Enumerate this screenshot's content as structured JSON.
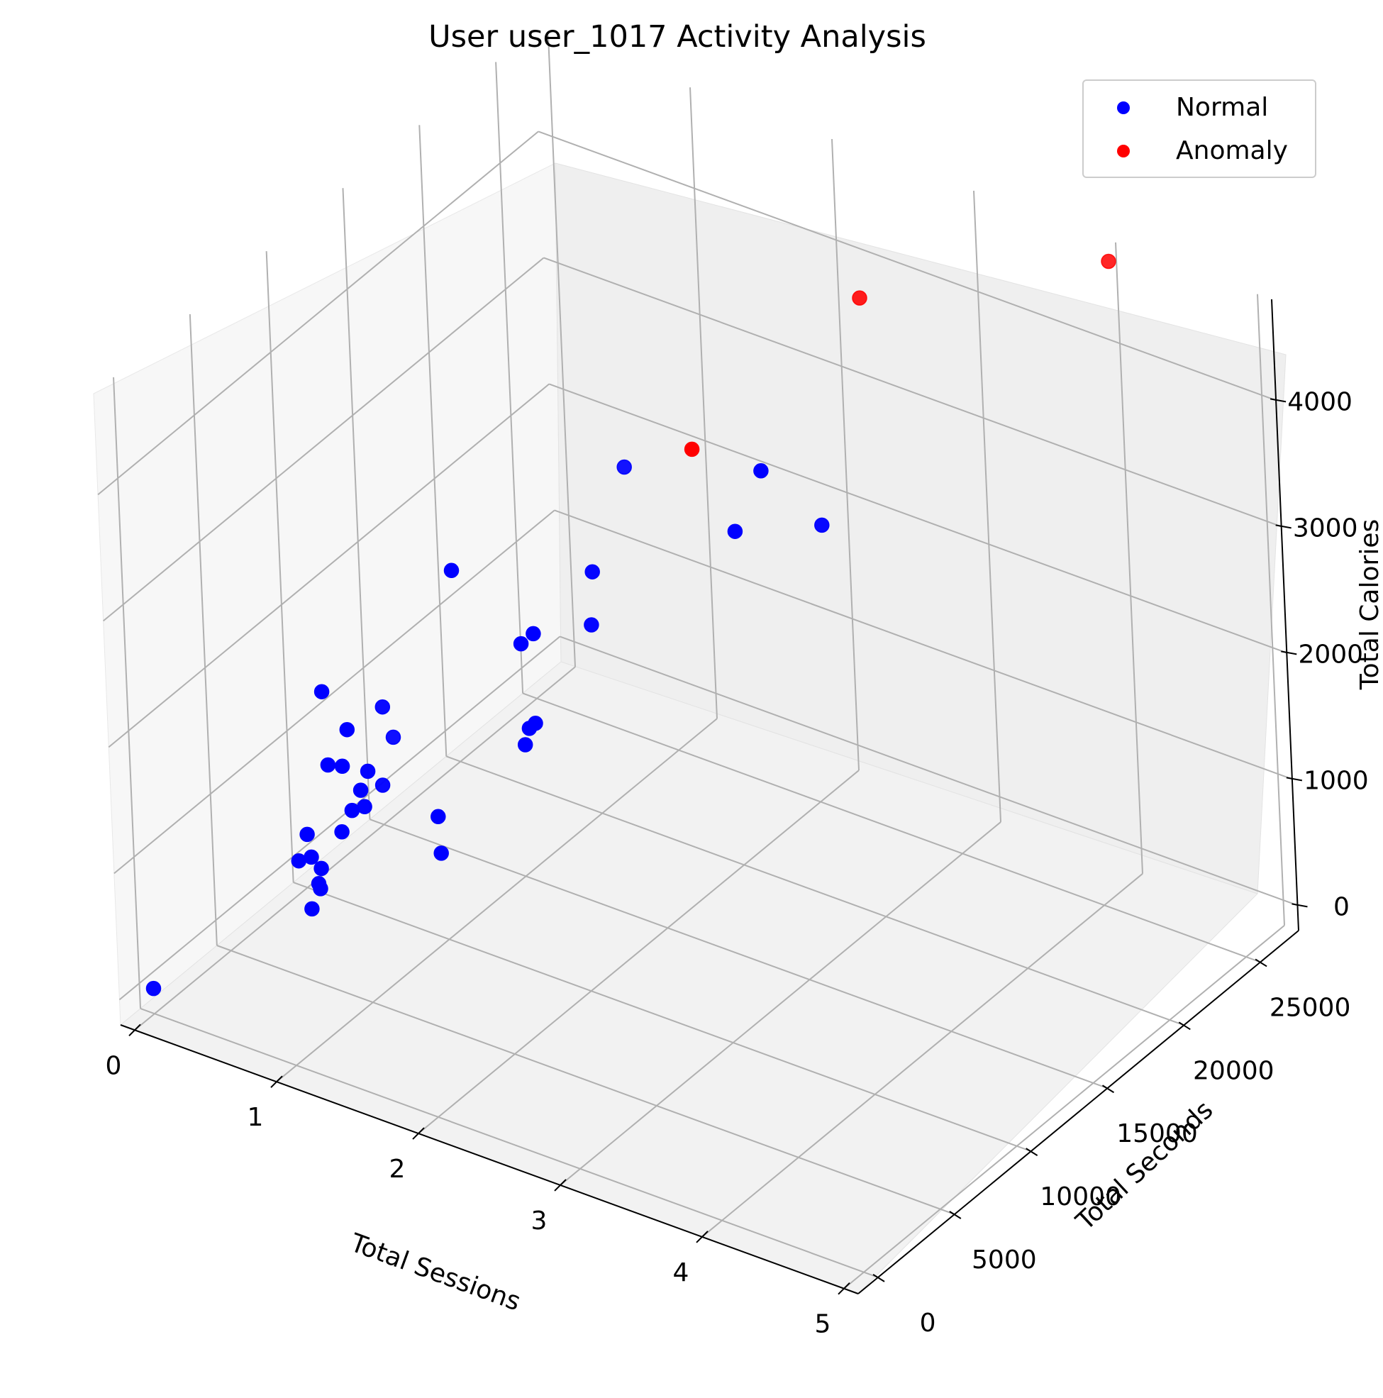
{
  "chart_data": {
    "type": "scatter",
    "projection": "3d",
    "title": "User user_1017 Activity Analysis",
    "xlabel": "Total Sessions",
    "ylabel": "Total Seconds",
    "zlabel": "Total Calories",
    "xticks": [
      "0",
      "1",
      "2",
      "3",
      "4",
      "5"
    ],
    "yticks": [
      "0",
      "5000",
      "10000",
      "15000",
      "20000",
      "25000"
    ],
    "zticks": [
      "0",
      "1000",
      "2000",
      "3000",
      "4000"
    ],
    "xlim": [
      -0.1,
      5.1
    ],
    "ylim": [
      -1300,
      27500
    ],
    "zlim": [
      -200,
      4800
    ],
    "grid": true,
    "legend_position": "top-right",
    "colors": {
      "Normal": "#0000ff",
      "Anomaly": "#ff0000",
      "pane": "#f2f2f2",
      "grid": "#b0b0b0"
    },
    "series": [
      {
        "name": "Normal",
        "points": [
          [
            1,
            1400,
            900
          ],
          [
            1,
            1900,
            1050
          ],
          [
            1,
            2000,
            1000
          ],
          [
            1,
            2100,
            1150
          ],
          [
            1,
            1500,
            1300
          ],
          [
            1,
            1300,
            1500
          ],
          [
            1,
            700,
            1350
          ],
          [
            1,
            3500,
            1300
          ],
          [
            1,
            5000,
            1350
          ],
          [
            1,
            4200,
            1400
          ],
          [
            1,
            4800,
            1500
          ],
          [
            1,
            5300,
            1600
          ],
          [
            1,
            6200,
            1400
          ],
          [
            1,
            3700,
            1800
          ],
          [
            1,
            2800,
            1900
          ],
          [
            1,
            4100,
            2050
          ],
          [
            1,
            7000,
            1700
          ],
          [
            1,
            2600,
            2500
          ],
          [
            1,
            6400,
            2000
          ],
          [
            2,
            900,
            1800
          ],
          [
            2,
            800,
            2100
          ],
          [
            2,
            6500,
            2100
          ],
          [
            2,
            6800,
            2200
          ],
          [
            2,
            7200,
            2200
          ],
          [
            2,
            6500,
            2900
          ],
          [
            2,
            7300,
            2900
          ],
          [
            2,
            11000,
            2600
          ],
          [
            2,
            11200,
            3000
          ],
          [
            2,
            13500,
            3600
          ],
          [
            2,
            2300,
            3900
          ],
          [
            3,
            11500,
            3700
          ],
          [
            3,
            13300,
            4000
          ],
          [
            3,
            17000,
            3200
          ],
          [
            0,
            0,
            0
          ]
        ]
      },
      {
        "name": "Anomaly",
        "points": [
          [
            3,
            9000,
            4600
          ],
          [
            3,
            20000,
            4700
          ],
          [
            4,
            27000,
            4700
          ]
        ]
      }
    ]
  }
}
